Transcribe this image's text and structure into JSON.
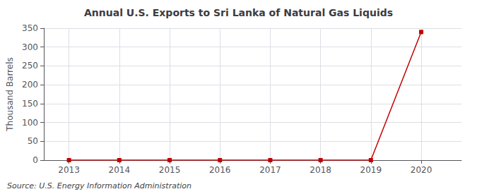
{
  "chart_data": {
    "type": "line",
    "title": "Annual U.S. Exports to Sri Lanka of Natural Gas Liquids",
    "ylabel": "Thousand Barrels",
    "source": "Source: U.S. Energy Information Administration",
    "x": [
      2013,
      2014,
      2015,
      2016,
      2017,
      2018,
      2019,
      2020
    ],
    "values": [
      0,
      0,
      0,
      0,
      0,
      0,
      0,
      340
    ],
    "color": "#c00000",
    "marker": "square",
    "xlim": [
      2012.5,
      2020.8
    ],
    "xticks": [
      2013,
      2014,
      2015,
      2016,
      2017,
      2018,
      2019,
      2020
    ],
    "ylim": [
      0,
      350
    ],
    "yticks": [
      0,
      50,
      100,
      150,
      200,
      250,
      300,
      350
    ],
    "grid": true
  }
}
